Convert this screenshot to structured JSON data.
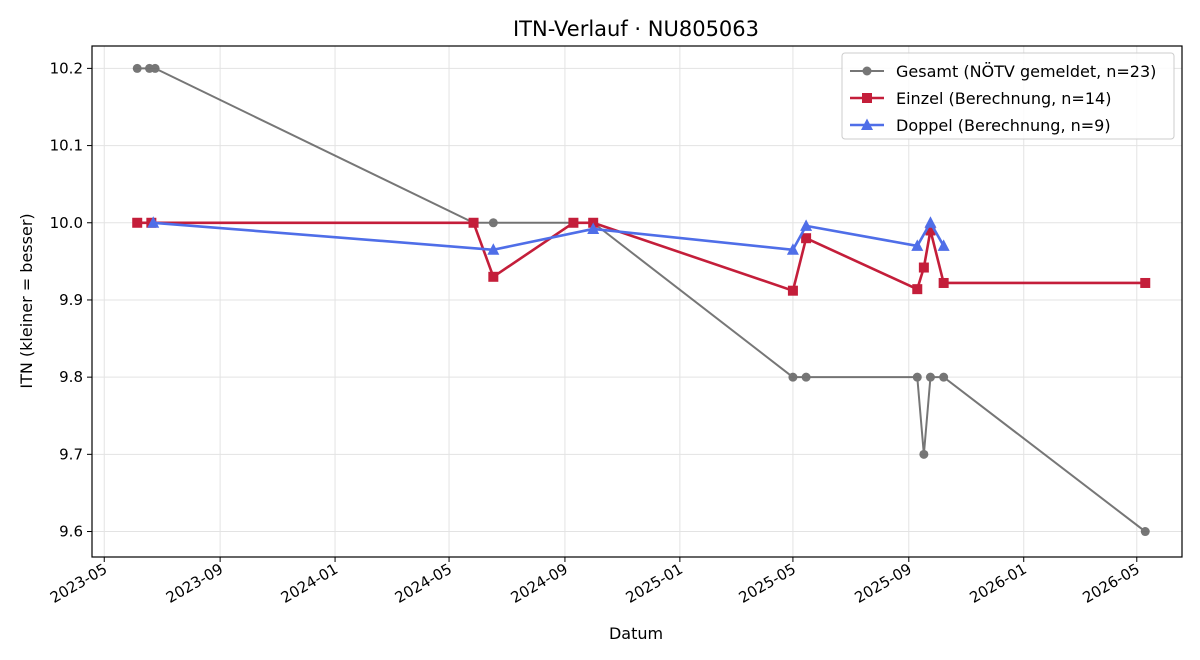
{
  "chart_data": {
    "type": "line",
    "title": "ITN-Verlauf · NU805063",
    "xlabel": "Datum",
    "ylabel": "ITN  (kleiner = besser)",
    "x_axis_type": "date",
    "xlim": [
      "2023-04-18",
      "2026-06-18"
    ],
    "ylim": [
      9.567,
      10.229
    ],
    "x_ticks": [
      "2023-05",
      "2023-09",
      "2024-01",
      "2024-05",
      "2024-09",
      "2025-01",
      "2025-05",
      "2025-09",
      "2026-01",
      "2026-05"
    ],
    "y_ticks": [
      9.6,
      9.7,
      9.8,
      9.9,
      10.0,
      10.1,
      10.2
    ],
    "grid": true,
    "legend_position": "top-right",
    "series": [
      {
        "name": "Gesamt (NÖTV gemeldet, n=23)",
        "color": "#555555",
        "marker": "circle",
        "points": [
          {
            "x": "2023-06-05",
            "y": 10.2
          },
          {
            "x": "2023-06-18",
            "y": 10.2
          },
          {
            "x": "2023-06-24",
            "y": 10.2
          },
          {
            "x": "2024-05-27",
            "y": 10.0
          },
          {
            "x": "2024-06-17",
            "y": 10.0
          },
          {
            "x": "2024-09-10",
            "y": 10.0
          },
          {
            "x": "2024-10-01",
            "y": 10.0
          },
          {
            "x": "2025-05-01",
            "y": 9.8
          },
          {
            "x": "2025-05-15",
            "y": 9.8
          },
          {
            "x": "2025-09-10",
            "y": 9.8
          },
          {
            "x": "2025-09-17",
            "y": 9.7
          },
          {
            "x": "2025-09-24",
            "y": 9.8
          },
          {
            "x": "2025-10-08",
            "y": 9.8
          },
          {
            "x": "2026-05-10",
            "y": 9.6
          }
        ]
      },
      {
        "name": "Einzel (Berechnung, n=14)",
        "color": "#c41e3a",
        "marker": "square",
        "points": [
          {
            "x": "2023-06-05",
            "y": 10.0
          },
          {
            "x": "2023-06-20",
            "y": 10.0
          },
          {
            "x": "2024-05-27",
            "y": 10.0
          },
          {
            "x": "2024-06-17",
            "y": 9.93
          },
          {
            "x": "2024-09-10",
            "y": 10.0
          },
          {
            "x": "2024-10-01",
            "y": 10.0
          },
          {
            "x": "2025-05-01",
            "y": 9.912
          },
          {
            "x": "2025-05-15",
            "y": 9.98
          },
          {
            "x": "2025-09-10",
            "y": 9.914
          },
          {
            "x": "2025-09-17",
            "y": 9.942
          },
          {
            "x": "2025-09-24",
            "y": 9.99
          },
          {
            "x": "2025-10-08",
            "y": 9.922
          },
          {
            "x": "2026-05-10",
            "y": 9.922
          }
        ]
      },
      {
        "name": "Doppel (Berechnung, n=9)",
        "color": "#4f6ee8",
        "marker": "triangle",
        "points": [
          {
            "x": "2023-06-22",
            "y": 10.0
          },
          {
            "x": "2024-06-17",
            "y": 9.965
          },
          {
            "x": "2024-10-01",
            "y": 9.992
          },
          {
            "x": "2025-05-01",
            "y": 9.965
          },
          {
            "x": "2025-05-15",
            "y": 9.996
          },
          {
            "x": "2025-09-10",
            "y": 9.97
          },
          {
            "x": "2025-09-24",
            "y": 10.0
          },
          {
            "x": "2025-10-08",
            "y": 9.97
          }
        ]
      }
    ]
  }
}
